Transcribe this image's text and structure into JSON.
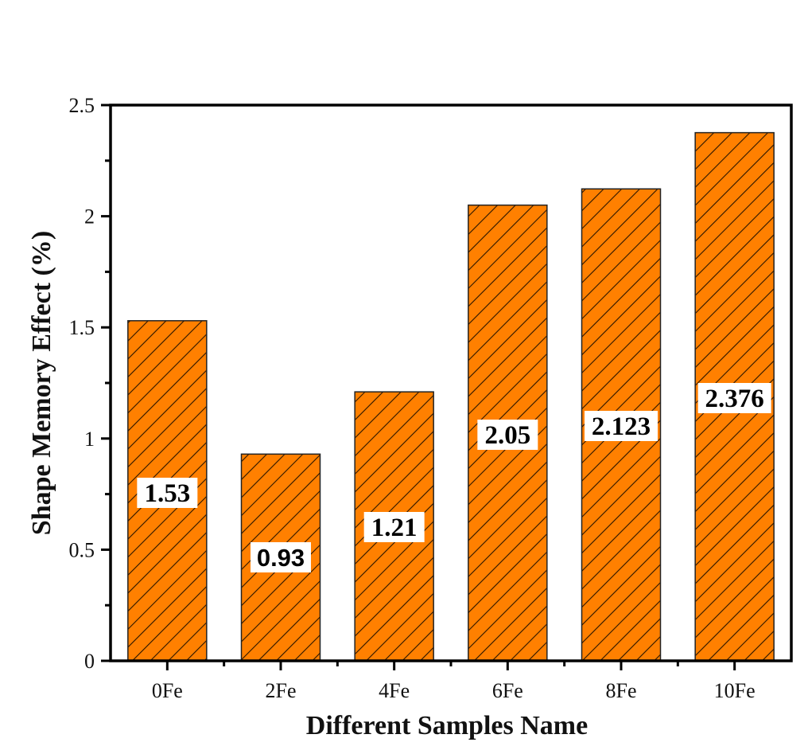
{
  "chart_data": {
    "type": "bar",
    "title": "",
    "xlabel": "Different Samples Name",
    "ylabel": "Shape Memory Effect (%)",
    "categories": [
      "0Fe",
      "2Fe",
      "4Fe",
      "6Fe",
      "8Fe",
      "10Fe"
    ],
    "values": [
      1.53,
      0.93,
      1.21,
      2.05,
      2.123,
      2.376
    ],
    "data_labels": [
      "1.53",
      "0.93",
      "1.21",
      "2.05",
      "2.123",
      "2.376"
    ],
    "ylim": [
      0,
      2.5
    ],
    "yticks": [
      "0",
      "0.5",
      "1",
      "1.5",
      "2",
      "2.5"
    ],
    "grid": false,
    "legend": null,
    "bar_fill": "#ff8000",
    "bar_hatch": "diagonal (///) black",
    "bar_edge": "#222222"
  }
}
